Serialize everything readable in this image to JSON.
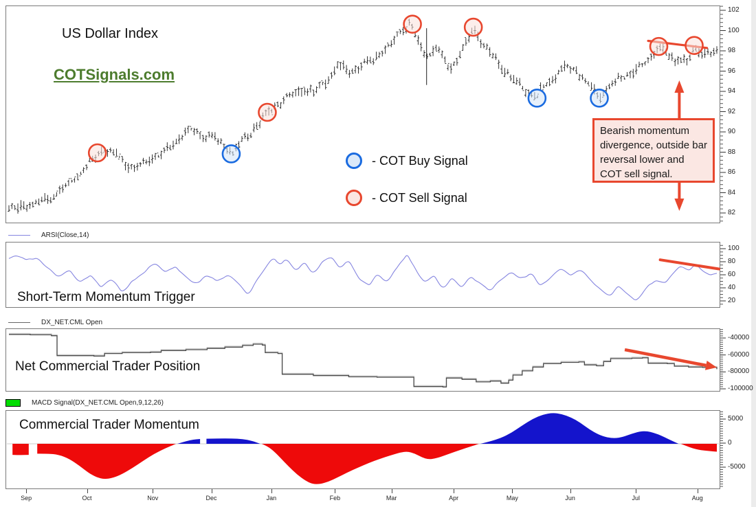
{
  "window": {
    "title": "US Dollar Index",
    "watermark": "COTSignals.com"
  },
  "colors": {
    "buy_signal": "#1a6be0",
    "sell_signal": "#e8472e",
    "arsi_line": "#8585e0",
    "step_line": "#4a4a4a",
    "step_line_highlight": "#cccccc",
    "hist_red": "#ee0a0a",
    "hist_blue": "#1414cc",
    "macd_swatch": "#00dd00",
    "bar_color": "#1c1c1c",
    "watermark_green": "#4d7c2e"
  },
  "chart_data": [
    {
      "id": "price",
      "type": "ohlc-bar",
      "title": "US Dollar Index",
      "watermark": "COTSignals.com",
      "ylim": [
        81.5,
        102.5
      ],
      "yticks": [
        102,
        100,
        98,
        96,
        94,
        92,
        90,
        88,
        86,
        84,
        82
      ],
      "x_axis": {
        "categories": [
          "Sep",
          "Oct",
          "Nov",
          "Dec",
          "Jan",
          "Feb",
          "Mar",
          "Apr",
          "May",
          "Jun",
          "Jul",
          "Aug"
        ],
        "positions_pct": [
          2.9,
          11.4,
          20.6,
          28.8,
          37.2,
          46.1,
          54.0,
          62.7,
          70.9,
          79.0,
          88.2,
          96.8
        ]
      },
      "series_anchors": [
        [
          0,
          82.3
        ],
        [
          2,
          82.7
        ],
        [
          4,
          83.1
        ],
        [
          6,
          83.6
        ],
        [
          8,
          84.6
        ],
        [
          10,
          86.0
        ],
        [
          12,
          87.5
        ],
        [
          13.5,
          88.5
        ],
        [
          15,
          87.8
        ],
        [
          16.5,
          87.0
        ],
        [
          18,
          86.6
        ],
        [
          20,
          87.4
        ],
        [
          22,
          88.1
        ],
        [
          24,
          89.4
        ],
        [
          25.5,
          90.1
        ],
        [
          27,
          89.9
        ],
        [
          29,
          89.4
        ],
        [
          30.5,
          88.6
        ],
        [
          31.5,
          88.0
        ],
        [
          33,
          89.2
        ],
        [
          34.5,
          90.3
        ],
        [
          36.5,
          91.9
        ],
        [
          38,
          92.8
        ],
        [
          40,
          93.6
        ],
        [
          41.5,
          94.4
        ],
        [
          43,
          94.0
        ],
        [
          45,
          95.2
        ],
        [
          46.5,
          96.8
        ],
        [
          48,
          95.9
        ],
        [
          50,
          96.6
        ],
        [
          52,
          97.6
        ],
        [
          54,
          98.7
        ],
        [
          55.5,
          100.2
        ],
        [
          56.8,
          100.7
        ],
        [
          58,
          98.6
        ],
        [
          59,
          97.6
        ],
        [
          60.5,
          98.4
        ],
        [
          61.5,
          97.1
        ],
        [
          62.5,
          96.4
        ],
        [
          64,
          97.9
        ],
        [
          65.6,
          100.3
        ],
        [
          67,
          98.7
        ],
        [
          68.5,
          97.4
        ],
        [
          70,
          96.1
        ],
        [
          71.5,
          95.1
        ],
        [
          73,
          94.3
        ],
        [
          74.6,
          93.5
        ],
        [
          76,
          94.9
        ],
        [
          77.5,
          95.8
        ],
        [
          79,
          96.5
        ],
        [
          80.5,
          95.9
        ],
        [
          82,
          94.6
        ],
        [
          83.4,
          93.6
        ],
        [
          85,
          94.7
        ],
        [
          86.5,
          95.4
        ],
        [
          88,
          95.9
        ],
        [
          89.5,
          96.6
        ],
        [
          91,
          97.9
        ],
        [
          91.8,
          98.4
        ],
        [
          93,
          97.7
        ],
        [
          94,
          97.2
        ],
        [
          95,
          97.5
        ],
        [
          96,
          96.8
        ],
        [
          96.8,
          98.2
        ],
        [
          98,
          97.9
        ],
        [
          100,
          98.1
        ]
      ],
      "down_spike": {
        "x_pct": 59,
        "top": 100.3,
        "bottom": 94.7
      },
      "signals": [
        {
          "x_pct": 12.5,
          "price": 88.0,
          "type": "sell"
        },
        {
          "x_pct": 31.4,
          "price": 87.9,
          "type": "buy"
        },
        {
          "x_pct": 36.5,
          "price": 92.0,
          "type": "sell"
        },
        {
          "x_pct": 57.0,
          "price": 100.7,
          "type": "sell"
        },
        {
          "x_pct": 65.6,
          "price": 100.4,
          "type": "sell"
        },
        {
          "x_pct": 74.6,
          "price": 93.4,
          "type": "buy"
        },
        {
          "x_pct": 83.4,
          "price": 93.4,
          "type": "buy"
        },
        {
          "x_pct": 91.8,
          "price": 98.5,
          "type": "sell"
        },
        {
          "x_pct": 96.8,
          "price": 98.6,
          "type": "sell"
        }
      ],
      "signal_legend": {
        "buy": "- COT Buy Signal",
        "sell": "- COT Sell Signal"
      },
      "trendline": {
        "from": [
          90.3,
          99.05
        ],
        "to": [
          98.6,
          98.35
        ]
      },
      "divergence_arrow_x_pct": 94.7,
      "annotation": "Bearish momentum divergence, outside bar reversal lower and COT sell signal."
    },
    {
      "id": "arsi",
      "type": "line",
      "indicator_label": "ARSI(Close,14)",
      "title": "Short-Term Momentum Trigger",
      "ylim": [
        10,
        110
      ],
      "yticks": [
        100,
        80,
        60,
        40,
        20
      ],
      "points": [
        [
          0,
          86
        ],
        [
          1.2,
          91
        ],
        [
          2.5,
          83
        ],
        [
          4,
          88
        ],
        [
          5.5,
          71
        ],
        [
          7,
          58
        ],
        [
          8.5,
          68
        ],
        [
          10,
          50
        ],
        [
          11.5,
          61
        ],
        [
          13,
          42
        ],
        [
          14.5,
          55
        ],
        [
          16,
          34
        ],
        [
          17.5,
          52
        ],
        [
          19,
          64
        ],
        [
          20.5,
          79
        ],
        [
          22,
          66
        ],
        [
          23.5,
          74
        ],
        [
          25,
          57
        ],
        [
          26.5,
          47
        ],
        [
          28,
          60
        ],
        [
          29.5,
          51
        ],
        [
          31,
          62
        ],
        [
          32.5,
          46
        ],
        [
          33.8,
          29
        ],
        [
          35,
          52
        ],
        [
          36.3,
          73
        ],
        [
          37.3,
          88
        ],
        [
          38.3,
          77
        ],
        [
          39.3,
          86
        ],
        [
          40.5,
          68
        ],
        [
          41.8,
          79
        ],
        [
          43,
          61
        ],
        [
          44.3,
          81
        ],
        [
          45.5,
          90
        ],
        [
          46.8,
          71
        ],
        [
          48,
          83
        ],
        [
          49.3,
          57
        ],
        [
          50.8,
          44
        ],
        [
          52,
          62
        ],
        [
          53.5,
          49
        ],
        [
          55,
          76
        ],
        [
          56.3,
          92
        ],
        [
          57.5,
          69
        ],
        [
          58.8,
          47
        ],
        [
          60,
          61
        ],
        [
          61.3,
          37
        ],
        [
          62.5,
          56
        ],
        [
          64,
          42
        ],
        [
          65.3,
          59
        ],
        [
          66.5,
          47
        ],
        [
          68,
          37
        ],
        [
          69.5,
          53
        ],
        [
          71,
          67
        ],
        [
          72.3,
          54
        ],
        [
          73.8,
          64
        ],
        [
          75,
          44
        ],
        [
          76.5,
          57
        ],
        [
          78,
          71
        ],
        [
          79.3,
          59
        ],
        [
          80.8,
          69
        ],
        [
          82.3,
          51
        ],
        [
          83.5,
          39
        ],
        [
          84.8,
          27
        ],
        [
          86,
          44
        ],
        [
          87.3,
          33
        ],
        [
          88.5,
          20
        ],
        [
          90,
          40
        ],
        [
          91.3,
          54
        ],
        [
          92.5,
          47
        ],
        [
          93.8,
          63
        ],
        [
          95,
          76
        ],
        [
          96,
          67
        ],
        [
          97,
          77
        ],
        [
          98,
          68
        ],
        [
          99,
          59
        ],
        [
          100,
          63
        ]
      ],
      "trendline": {
        "from": [
          92,
          84
        ],
        "to": [
          100.3,
          70
        ]
      }
    },
    {
      "id": "net_position",
      "type": "step-line",
      "indicator_label": "DX_NET.CML Open",
      "title": "Net Commercial Trader Position",
      "yticks": [
        -40000,
        -60000,
        -80000,
        -100000
      ],
      "points": [
        [
          0,
          -35000
        ],
        [
          3,
          -35500
        ],
        [
          6,
          -36500
        ],
        [
          6.8,
          -60000
        ],
        [
          12,
          -60500
        ],
        [
          13.5,
          -57500
        ],
        [
          16,
          -56500
        ],
        [
          20,
          -56000
        ],
        [
          21.5,
          -54000
        ],
        [
          25,
          -53000
        ],
        [
          28,
          -51500
        ],
        [
          30.5,
          -50000
        ],
        [
          33,
          -48000
        ],
        [
          34.5,
          -46500
        ],
        [
          35.8,
          -47500
        ],
        [
          36.2,
          -56500
        ],
        [
          38,
          -57500
        ],
        [
          38.6,
          -82000
        ],
        [
          43,
          -83500
        ],
        [
          48,
          -85000
        ],
        [
          52,
          -85500
        ],
        [
          56.8,
          -85500
        ],
        [
          57.2,
          -96500
        ],
        [
          61.3,
          -97000
        ],
        [
          61.8,
          -86500
        ],
        [
          64,
          -88000
        ],
        [
          66,
          -91000
        ],
        [
          68,
          -90000
        ],
        [
          69.5,
          -92500
        ],
        [
          70.6,
          -89000
        ],
        [
          71.2,
          -83000
        ],
        [
          72.5,
          -78000
        ],
        [
          74,
          -73500
        ],
        [
          75.5,
          -69500
        ],
        [
          78,
          -68000
        ],
        [
          80.5,
          -67500
        ],
        [
          81.3,
          -71000
        ],
        [
          83,
          -72000
        ],
        [
          84,
          -67000
        ],
        [
          85,
          -63500
        ],
        [
          88,
          -63000
        ],
        [
          89.5,
          -62500
        ],
        [
          90.3,
          -69000
        ],
        [
          93,
          -69500
        ],
        [
          94,
          -72500
        ],
        [
          96,
          -73500
        ],
        [
          98,
          -74000
        ],
        [
          100,
          -76000
        ]
      ],
      "arrow": {
        "from": [
          87,
          -53000
        ],
        "to": [
          100,
          -74000
        ]
      }
    },
    {
      "id": "macd",
      "type": "area-histogram",
      "indicator_label": "MACD Signal(DX_NET.CML Open,9,12,26)",
      "title": "Commercial Trader Momentum",
      "yticks": [
        5000,
        0,
        -5000
      ],
      "segments": [
        {
          "points": [
            [
              0.5,
              -2300
            ],
            [
              1.5,
              -2350
            ],
            [
              2.8,
              -2300
            ]
          ]
        },
        {
          "points": [
            [
              4.0,
              -2050
            ],
            [
              5.5,
              -2050
            ],
            [
              7,
              -2250
            ],
            [
              8.5,
              -3100
            ],
            [
              10,
              -4600
            ],
            [
              11.3,
              -6100
            ],
            [
              12.4,
              -7000
            ],
            [
              13.5,
              -7350
            ],
            [
              14.7,
              -7100
            ],
            [
              16,
              -6300
            ],
            [
              17.5,
              -5000
            ],
            [
              19,
              -3500
            ],
            [
              20.5,
              -2100
            ],
            [
              22,
              -1000
            ],
            [
              23.2,
              -250
            ],
            [
              23.6,
              0
            ]
          ]
        },
        {
          "points": [
            [
              23.8,
              0
            ],
            [
              24.6,
              350
            ],
            [
              25.6,
              750
            ],
            [
              26.5,
              950
            ],
            [
              27.0,
              1000
            ]
          ]
        },
        {
          "points": [
            [
              27.9,
              1050
            ],
            [
              29.5,
              1100
            ],
            [
              31.5,
              1120
            ],
            [
              33,
              1000
            ],
            [
              34.3,
              650
            ],
            [
              35.3,
              100
            ],
            [
              35.5,
              0
            ]
          ]
        },
        {
          "points": [
            [
              35.7,
              0
            ],
            [
              36.5,
              -500
            ],
            [
              37.4,
              -1500
            ],
            [
              38.4,
              -3000
            ],
            [
              39.5,
              -4700
            ],
            [
              40.7,
              -6400
            ],
            [
              41.9,
              -7700
            ],
            [
              42.9,
              -8350
            ],
            [
              43.9,
              -8400
            ],
            [
              45.1,
              -7900
            ],
            [
              46.4,
              -7000
            ],
            [
              47.9,
              -5900
            ],
            [
              49.4,
              -4900
            ],
            [
              50.9,
              -3950
            ],
            [
              52.4,
              -3150
            ],
            [
              53.9,
              -2400
            ],
            [
              55.3,
              -1800
            ],
            [
              56.3,
              -1600
            ],
            [
              57.3,
              -2000
            ],
            [
              58.3,
              -2800
            ],
            [
              59.3,
              -3250
            ],
            [
              60.3,
              -3050
            ],
            [
              61.6,
              -2400
            ],
            [
              63.1,
              -1600
            ],
            [
              64.6,
              -850
            ],
            [
              65.9,
              -250
            ],
            [
              66.4,
              0
            ]
          ]
        },
        {
          "points": [
            [
              66.6,
              0
            ],
            [
              68,
              500
            ],
            [
              69.5,
              1200
            ],
            [
              71,
              2300
            ],
            [
              72.5,
              3800
            ],
            [
              74,
              5200
            ],
            [
              75.5,
              6100
            ],
            [
              76.8,
              6450
            ],
            [
              78.1,
              6200
            ],
            [
              79.4,
              5500
            ],
            [
              80.7,
              4400
            ],
            [
              82,
              3000
            ],
            [
              83.3,
              1900
            ],
            [
              84.5,
              1300
            ],
            [
              85.6,
              1150
            ],
            [
              86.7,
              1400
            ],
            [
              87.9,
              2050
            ],
            [
              89.1,
              2550
            ],
            [
              90.1,
              2650
            ],
            [
              91.1,
              2300
            ],
            [
              92.3,
              1600
            ],
            [
              93.4,
              800
            ],
            [
              94.3,
              200
            ],
            [
              94.6,
              0
            ]
          ]
        },
        {
          "points": [
            [
              94.9,
              0
            ],
            [
              95.6,
              -400
            ],
            [
              96.6,
              -950
            ],
            [
              97.6,
              -1300
            ],
            [
              98.8,
              -1500
            ],
            [
              100,
              -1650
            ]
          ]
        }
      ]
    }
  ]
}
